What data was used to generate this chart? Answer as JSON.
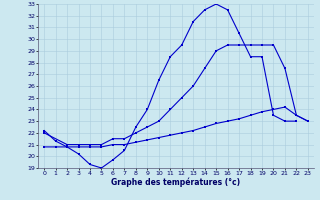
{
  "xlabel": "Graphe des températures (°c)",
  "bg_color": "#cce8f0",
  "grid_color": "#aaccdd",
  "line_color": "#0000cc",
  "xlim": [
    -0.5,
    23.5
  ],
  "ylim": [
    19,
    33
  ],
  "yticks": [
    19,
    20,
    21,
    22,
    23,
    24,
    25,
    26,
    27,
    28,
    29,
    30,
    31,
    32,
    33
  ],
  "xticks": [
    0,
    1,
    2,
    3,
    4,
    5,
    6,
    7,
    8,
    9,
    10,
    11,
    12,
    13,
    14,
    15,
    16,
    17,
    18,
    19,
    20,
    21,
    22,
    23
  ],
  "line1_x": [
    0,
    1,
    2,
    3,
    4,
    5,
    6,
    7,
    8,
    9,
    10,
    11,
    12,
    13,
    14,
    15,
    16,
    17,
    18,
    19,
    20,
    21,
    22
  ],
  "line1_y": [
    22.2,
    21.3,
    20.8,
    20.2,
    19.3,
    19.0,
    19.7,
    20.5,
    22.5,
    24.0,
    26.5,
    28.5,
    29.5,
    31.5,
    32.5,
    33.0,
    32.5,
    30.5,
    28.5,
    28.5,
    23.5,
    23.0,
    23.0
  ],
  "line2_x": [
    0,
    2,
    3,
    4,
    5,
    6,
    7,
    8,
    9,
    10,
    11,
    12,
    13,
    14,
    15,
    16,
    17,
    18,
    19,
    20,
    21,
    22,
    23
  ],
  "line2_y": [
    22.0,
    21.0,
    21.0,
    21.0,
    21.0,
    21.5,
    21.5,
    22.0,
    22.5,
    23.0,
    24.0,
    25.0,
    26.0,
    27.5,
    29.0,
    29.5,
    29.5,
    29.5,
    29.5,
    29.5,
    27.5,
    23.5,
    23.0
  ],
  "line3_x": [
    0,
    1,
    2,
    3,
    4,
    5,
    6,
    7,
    8,
    9,
    10,
    11,
    12,
    13,
    14,
    15,
    16,
    17,
    18,
    19,
    20,
    21,
    22,
    23
  ],
  "line3_y": [
    20.8,
    20.8,
    20.8,
    20.8,
    20.8,
    20.8,
    21.0,
    21.0,
    21.2,
    21.4,
    21.6,
    21.8,
    22.0,
    22.2,
    22.5,
    22.8,
    23.0,
    23.2,
    23.5,
    23.8,
    24.0,
    24.2,
    23.5,
    23.0
  ]
}
